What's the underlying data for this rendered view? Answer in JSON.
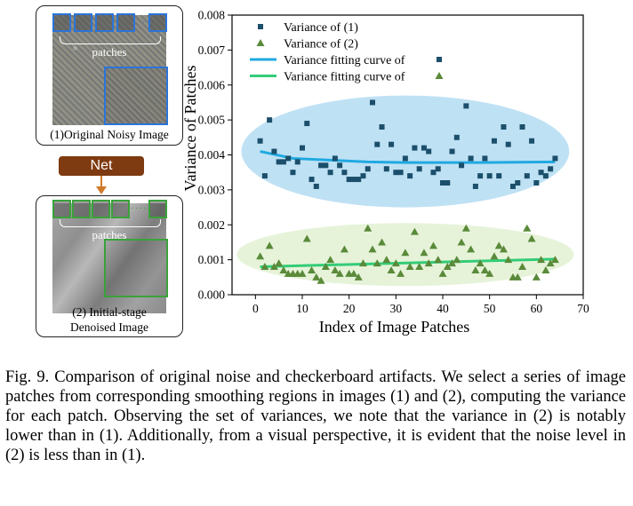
{
  "panels": {
    "top": {
      "patches_label": "patches",
      "caption": "(1)Original Noisy Image",
      "dots": "···"
    },
    "net_label": "Net",
    "bottom": {
      "patches_label": "patches",
      "caption_line1": "(2) Initial-stage",
      "caption_line2": "Denoised Image",
      "dots": "·····"
    }
  },
  "colors": {
    "series1": "#1b4f6b",
    "series2": "#5a8a3a",
    "fit1": "#20a9e1",
    "fit2": "#33cc77",
    "ellipse1": "#bfe1f4",
    "ellipse2": "#e6f3d9",
    "net_box": "#7e3a10"
  },
  "chart_data": {
    "type": "scatter",
    "xlabel": "Index of Image Patches",
    "ylabel": "Variance of Patches",
    "xlim": [
      -5,
      70
    ],
    "ylim": [
      0,
      0.008
    ],
    "xticks": [
      0,
      10,
      20,
      30,
      40,
      50,
      60,
      70
    ],
    "xtick_labels": [
      "0",
      "10",
      "20",
      "30",
      "40",
      "50",
      "60",
      "70"
    ],
    "yticks": [
      0,
      0.001,
      0.002,
      0.003,
      0.004,
      0.005,
      0.006,
      0.007,
      0.008
    ],
    "ytick_labels": [
      "0.000",
      "0.001",
      "0.002",
      "0.003",
      "0.004",
      "0.005",
      "0.006",
      "0.007",
      "0.008"
    ],
    "legend_position": "top-left",
    "legend": [
      {
        "label": "Variance of (1)",
        "marker": "square"
      },
      {
        "label": "Variance of (2)",
        "marker": "triangle"
      },
      {
        "label": "Variance fitting curve of",
        "marker": "line-square"
      },
      {
        "label": "Variance fitting curve of",
        "marker": "line-triangle"
      }
    ],
    "series": [
      {
        "name": "Variance of (1)",
        "marker": "square",
        "x": [
          1,
          2,
          3,
          4,
          5,
          6,
          7,
          8,
          9,
          10,
          11,
          12,
          13,
          14,
          15,
          16,
          17,
          18,
          19,
          20,
          21,
          22,
          23,
          24,
          25,
          26,
          27,
          28,
          29,
          30,
          31,
          32,
          33,
          34,
          35,
          36,
          37,
          38,
          39,
          40,
          41,
          42,
          43,
          44,
          45,
          46,
          47,
          48,
          49,
          50,
          51,
          52,
          53,
          54,
          55,
          56,
          57,
          58,
          59,
          60,
          61,
          62,
          63,
          64
        ],
        "y": [
          0.0044,
          0.0034,
          0.005,
          0.0041,
          0.0038,
          0.0038,
          0.0039,
          0.0035,
          0.0038,
          0.0042,
          0.0049,
          0.0033,
          0.0031,
          0.0037,
          0.0037,
          0.0035,
          0.0039,
          0.0037,
          0.0035,
          0.0033,
          0.0033,
          0.0033,
          0.0034,
          0.0036,
          0.0055,
          0.0043,
          0.0048,
          0.0036,
          0.0043,
          0.0035,
          0.0035,
          0.0039,
          0.0034,
          0.0042,
          0.0036,
          0.0042,
          0.0041,
          0.0035,
          0.0036,
          0.0032,
          0.0032,
          0.0041,
          0.0045,
          0.0037,
          0.0054,
          0.0039,
          0.0031,
          0.0034,
          0.0039,
          0.0034,
          0.0044,
          0.0034,
          0.0048,
          0.0043,
          0.0031,
          0.0032,
          0.0048,
          0.0034,
          0.0044,
          0.0032,
          0.0035,
          0.0034,
          0.0036,
          0.0039
        ]
      },
      {
        "name": "Variance of (2)",
        "marker": "triangle",
        "x": [
          1,
          2,
          3,
          4,
          5,
          6,
          7,
          8,
          9,
          10,
          11,
          12,
          13,
          14,
          15,
          16,
          17,
          18,
          19,
          20,
          21,
          22,
          23,
          24,
          25,
          26,
          27,
          28,
          29,
          30,
          31,
          32,
          33,
          34,
          35,
          36,
          37,
          38,
          39,
          40,
          41,
          42,
          43,
          44,
          45,
          46,
          47,
          48,
          49,
          50,
          51,
          52,
          53,
          54,
          55,
          56,
          57,
          58,
          59,
          60,
          61,
          62,
          63,
          64
        ],
        "y": [
          0.0011,
          0.0008,
          0.0014,
          0.0008,
          0.0009,
          0.0007,
          0.0006,
          0.0006,
          0.0006,
          0.0006,
          0.0016,
          0.0007,
          0.0005,
          0.0004,
          0.0008,
          0.001,
          0.0007,
          0.0006,
          0.0013,
          0.0006,
          0.0006,
          0.0005,
          0.0009,
          0.0019,
          0.0013,
          0.0009,
          0.0015,
          0.001,
          0.0007,
          0.0009,
          0.0006,
          0.0012,
          0.0008,
          0.0018,
          0.0008,
          0.0012,
          0.0009,
          0.0014,
          0.001,
          0.0006,
          0.0008,
          0.0009,
          0.001,
          0.0015,
          0.0019,
          0.0013,
          0.0007,
          0.0009,
          0.0007,
          0.0006,
          0.0011,
          0.0014,
          0.0013,
          0.001,
          0.0005,
          0.0005,
          0.0008,
          0.0019,
          0.0016,
          0.0005,
          0.001,
          0.0007,
          0.0009,
          0.001
        ]
      },
      {
        "name": "Variance fitting curve of",
        "type": "line",
        "x": [
          1,
          8,
          16,
          24,
          32,
          40,
          48,
          56,
          64
        ],
        "y": [
          0.0041,
          0.0039,
          0.00385,
          0.0038,
          0.00378,
          0.00378,
          0.00378,
          0.00379,
          0.0038
        ]
      },
      {
        "name": "Variance fitting curve of",
        "type": "line",
        "x": [
          1,
          64
        ],
        "y": [
          0.0008,
          0.00102
        ]
      }
    ],
    "ellipses": [
      {
        "cx": 32,
        "cy": 0.0041,
        "rx": 35,
        "ry": 0.0016
      },
      {
        "cx": 32,
        "cy": 0.00115,
        "rx": 36,
        "ry": 0.0009
      }
    ]
  },
  "caption": "Fig. 9.  Comparison of original noise and checkerboard artifacts. We select a series of image patches from corresponding smoothing regions in images (1) and (2), computing the variance for each patch. Observing the set of variances, we note that the variance in (2) is notably lower than in (1). Additionally, from a visual perspective, it is evident that the noise level in (2) is less than in (1)."
}
